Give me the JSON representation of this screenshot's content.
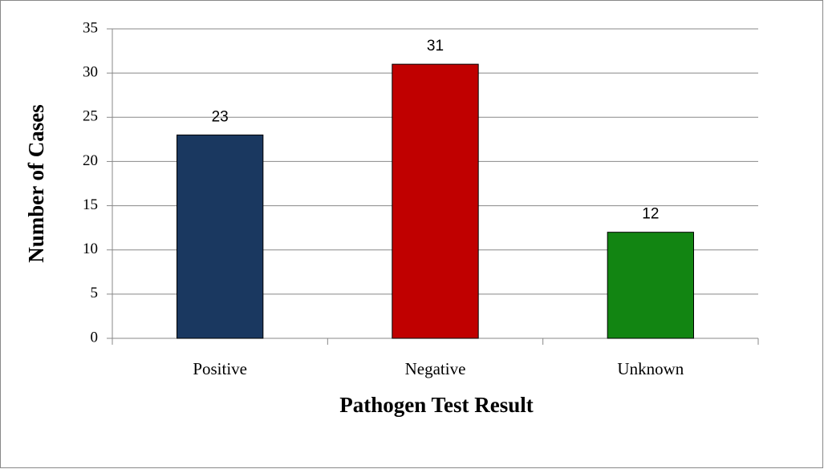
{
  "chart_data": {
    "type": "bar",
    "categories": [
      "Positive",
      "Negative",
      "Unknown"
    ],
    "values": [
      23,
      31,
      12
    ],
    "colors": [
      "#1a3860",
      "#c00000",
      "#128512"
    ],
    "xlabel": "Pathogen Test Result",
    "ylabel": "Number of Cases",
    "ylim": [
      0,
      35
    ],
    "yticks": [
      0,
      5,
      10,
      15,
      20,
      25,
      30,
      35
    ],
    "grid": true
  }
}
